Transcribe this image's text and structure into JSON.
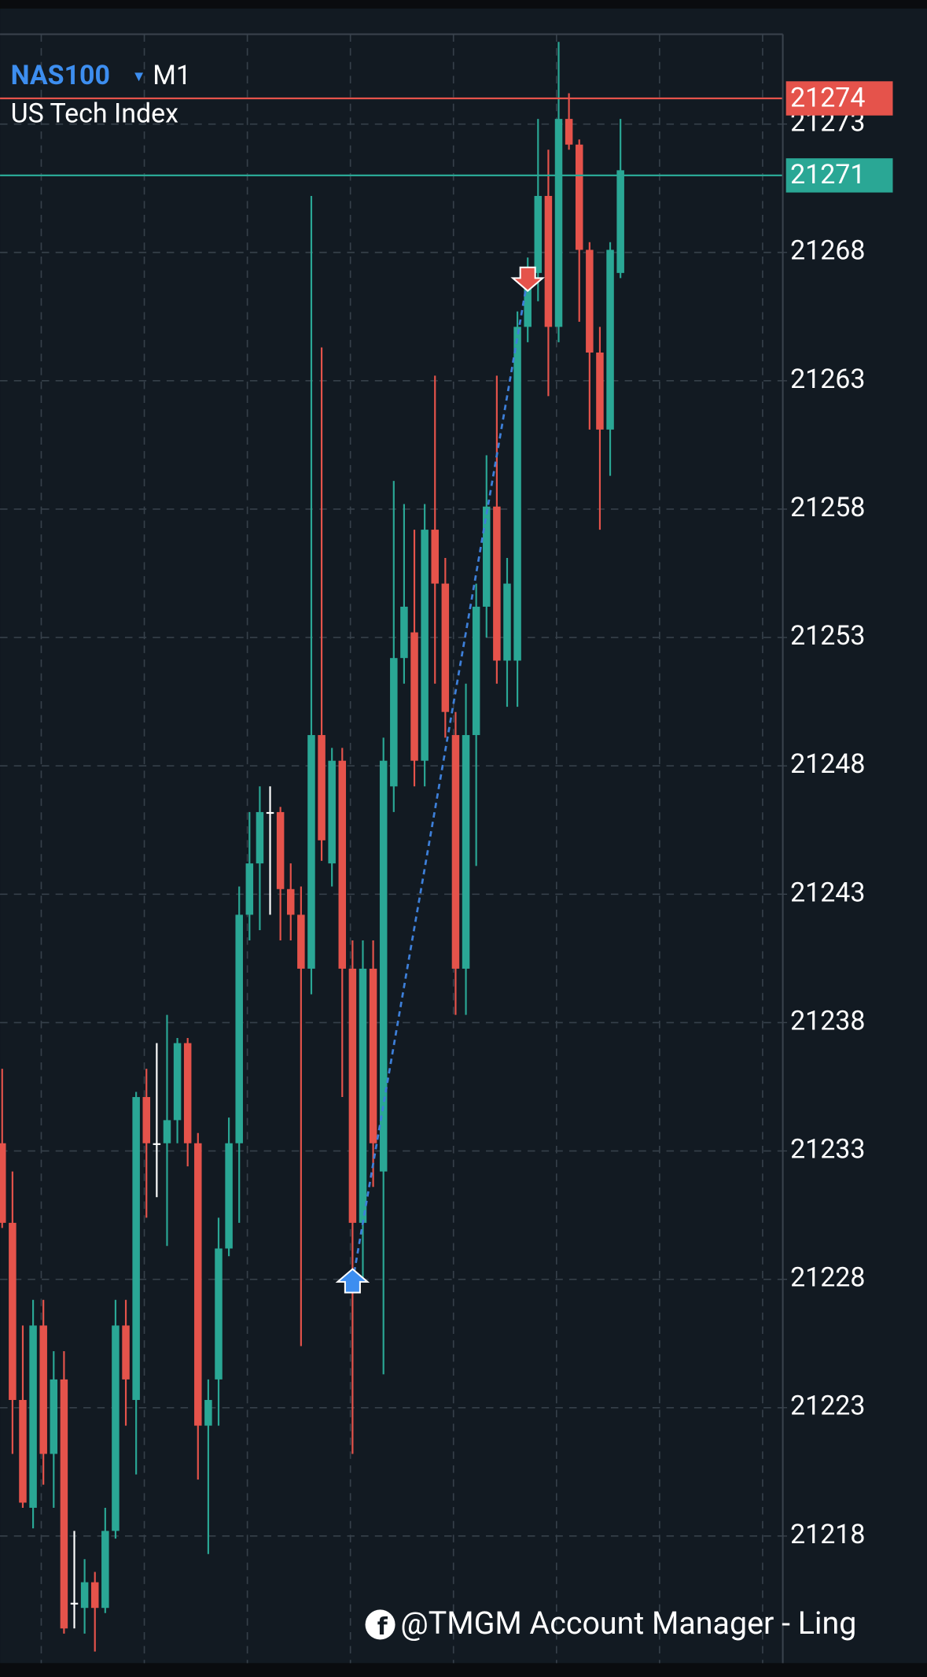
{
  "chart_data": {
    "type": "candlestick",
    "symbol": "NAS100",
    "timeframe": "M1",
    "description": "US Tech Index",
    "watermark": "@TMGM Account Manager - Ling",
    "up_color": "#2aa795",
    "down_color": "#e5534b",
    "doji_color": "#ffffff",
    "grid": true,
    "categories": [
      null,
      null,
      null,
      null,
      null,
      null,
      null,
      null,
      null,
      null,
      null,
      null,
      null,
      null,
      null,
      null,
      null,
      null,
      null,
      null,
      null,
      null,
      null,
      null,
      null,
      null,
      null,
      null,
      null,
      null,
      null,
      null,
      null,
      null,
      null,
      null,
      null,
      null,
      null,
      null,
      null,
      null,
      null,
      null,
      null,
      null,
      null,
      null,
      null,
      null,
      null,
      null,
      null,
      null,
      null,
      null,
      null,
      null,
      null,
      null,
      null
    ],
    "open": [
      21233.3,
      21230.2,
      21223.3,
      21219.1,
      21226.2,
      21221.2,
      21224.1,
      21215.4,
      21215.2,
      21216.2,
      21215.2,
      21218.2,
      21226.2,
      21223.3,
      21235.1,
      21233.3,
      21233.3,
      21234.2,
      21237.2,
      21233.3,
      21222.3,
      21224.1,
      21229.2,
      21233.3,
      21242.2,
      21244.2,
      21246.2,
      21246.2,
      21243.2,
      21242.2,
      21240.1,
      21249.2,
      21244.2,
      21248.2,
      21240.1,
      21230.2,
      21240.1,
      21232.2,
      21247.2,
      21252.2,
      21253.2,
      21248.2,
      21257.2,
      21255.1,
      21249.2,
      21240.1,
      21249.2,
      21254.2,
      21258.1,
      21252.1,
      21252.1,
      21265.1,
      21267.2,
      21270.2,
      21265.1,
      21273.2,
      21272.2,
      21268.1,
      21264.1,
      21261.1,
      21267.2
    ],
    "high": [
      21236.2,
      21232.2,
      21226.2,
      21227.2,
      21227.2,
      21225.2,
      21225.2,
      21218.2,
      21217.1,
      21216.6,
      21219.1,
      21227.2,
      21227.2,
      21235.3,
      21236.2,
      21237.2,
      21238.3,
      21237.4,
      21237.4,
      21233.7,
      21224.1,
      21230.4,
      21234.3,
      21243.3,
      21246.2,
      21247.2,
      21247.2,
      21246.4,
      21244.2,
      21243.3,
      21270.2,
      21264.3,
      21248.7,
      21248.7,
      21241.2,
      21241.2,
      21241.2,
      21249.1,
      21259.1,
      21258.2,
      21257.2,
      21258.2,
      21263.2,
      21256.1,
      21250.1,
      21251.2,
      21255.1,
      21260.1,
      21263.2,
      21256.1,
      21265.7,
      21267.8,
      21273.2,
      21272.0,
      21276.2,
      21274.2,
      21272.4,
      21268.4,
      21265.1,
      21268.4,
      21273.2
    ],
    "low": [
      21230.0,
      21221.2,
      21219.1,
      21218.3,
      21220.0,
      21219.1,
      21214.2,
      21214.4,
      21214.2,
      21213.5,
      21215.0,
      21217.9,
      21222.3,
      21220.4,
      21230.4,
      21231.2,
      21229.3,
      21233.3,
      21232.4,
      21220.2,
      21217.3,
      21222.3,
      21228.9,
      21230.2,
      21241.2,
      21241.6,
      21242.2,
      21241.2,
      21241.2,
      21225.4,
      21239.1,
      21244.3,
      21243.3,
      21235.1,
      21221.2,
      21227.9,
      21231.6,
      21224.3,
      21246.2,
      21251.2,
      21247.2,
      21247.2,
      21251.2,
      21249.1,
      21238.3,
      21238.3,
      21244.1,
      21253.0,
      21251.2,
      21250.3,
      21250.3,
      21264.5,
      21266.1,
      21262.4,
      21264.5,
      21272.0,
      21265.3,
      21261.1,
      21257.2,
      21259.3,
      21267.0
    ],
    "close": [
      21230.2,
      21223.3,
      21219.3,
      21226.2,
      21221.2,
      21224.1,
      21214.4,
      21215.4,
      21216.2,
      21215.2,
      21218.2,
      21226.2,
      21224.1,
      21235.1,
      21233.3,
      21233.3,
      21234.2,
      21237.2,
      21233.3,
      21222.3,
      21223.3,
      21229.2,
      21233.3,
      21242.2,
      21244.2,
      21246.2,
      21246.2,
      21243.2,
      21242.2,
      21240.1,
      21249.2,
      21245.1,
      21248.2,
      21240.1,
      21230.2,
      21240.1,
      21233.3,
      21248.2,
      21252.2,
      21254.2,
      21248.2,
      21257.2,
      21255.1,
      21250.1,
      21240.1,
      21249.2,
      21254.2,
      21258.1,
      21252.1,
      21255.1,
      21265.1,
      21267.2,
      21270.2,
      21265.1,
      21273.2,
      21272.2,
      21268.1,
      21264.1,
      21261.1,
      21268.1,
      21271.2
    ],
    "ylim": [
      21213.3,
      21276.5
    ],
    "yticks": [
      21218,
      21223,
      21228,
      21233,
      21238,
      21243,
      21248,
      21253,
      21258,
      21263,
      21268,
      21273
    ],
    "price_lines": [
      {
        "value": 21274,
        "color": "#e5534b"
      },
      {
        "value": 21271,
        "color": "#2aa795"
      }
    ],
    "markers": [
      {
        "index": 34,
        "price": 21227.9,
        "color": "#3d8ef0",
        "direction": "up"
      },
      {
        "index": 51,
        "price": 21267.0,
        "color": "#e5534b",
        "direction": "down"
      }
    ],
    "trade_line_color": "#3d7fd9"
  }
}
